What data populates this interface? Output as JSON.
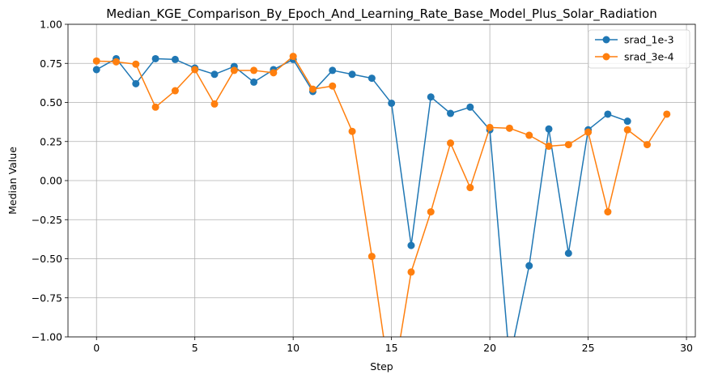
{
  "chart_data": {
    "type": "line",
    "title": "Median_KGE_Comparison_By_Epoch_And_Learning_Rate_Base_Model_Plus_Solar_Radiation",
    "xlabel": "Step",
    "ylabel": "Median Value",
    "xlim": [
      -1.45,
      30.45
    ],
    "ylim": [
      -1.0,
      1.0
    ],
    "xticks": [
      0,
      5,
      10,
      15,
      20,
      25,
      30
    ],
    "xtick_labels": [
      "0",
      "5",
      "10",
      "15",
      "20",
      "25",
      "30"
    ],
    "yticks": [
      -1.0,
      -0.75,
      -0.5,
      -0.25,
      0.0,
      0.25,
      0.5,
      0.75,
      1.0
    ],
    "ytick_labels": [
      "−1.00",
      "−0.75",
      "−0.50",
      "−0.25",
      "0.00",
      "0.25",
      "0.50",
      "0.75",
      "1.00"
    ],
    "grid": true,
    "legend_position": "top-right",
    "series": [
      {
        "name": "srad_1e-3",
        "color": "#1f77b4",
        "x": [
          0,
          1,
          2,
          3,
          4,
          5,
          6,
          7,
          8,
          9,
          10,
          11,
          12,
          13,
          14,
          15,
          16,
          17,
          18,
          19,
          20,
          21,
          22,
          23,
          24,
          25,
          26,
          27
        ],
        "y": [
          0.71,
          0.78,
          0.62,
          0.78,
          0.775,
          0.72,
          0.68,
          0.73,
          0.63,
          0.71,
          0.775,
          0.57,
          0.705,
          0.68,
          0.655,
          0.495,
          -0.415,
          0.535,
          0.43,
          0.47,
          0.325,
          -1.15,
          -0.545,
          0.33,
          -0.465,
          0.325,
          0.425,
          0.38
        ]
      },
      {
        "name": "srad_3e-4",
        "color": "#ff7f0e",
        "x": [
          0,
          1,
          2,
          3,
          4,
          5,
          6,
          7,
          8,
          9,
          10,
          11,
          12,
          13,
          14,
          15,
          16,
          17,
          18,
          19,
          20,
          21,
          22,
          23,
          24,
          25,
          26,
          27,
          28,
          29
        ],
        "y": [
          0.765,
          0.76,
          0.745,
          0.47,
          0.575,
          0.71,
          0.49,
          0.705,
          0.705,
          0.69,
          0.795,
          0.585,
          0.605,
          0.315,
          -0.485,
          -1.35,
          -0.585,
          -0.2,
          0.24,
          -0.045,
          0.34,
          0.335,
          0.29,
          0.22,
          0.23,
          0.31,
          -0.2,
          0.325,
          0.23,
          0.425
        ]
      }
    ]
  }
}
